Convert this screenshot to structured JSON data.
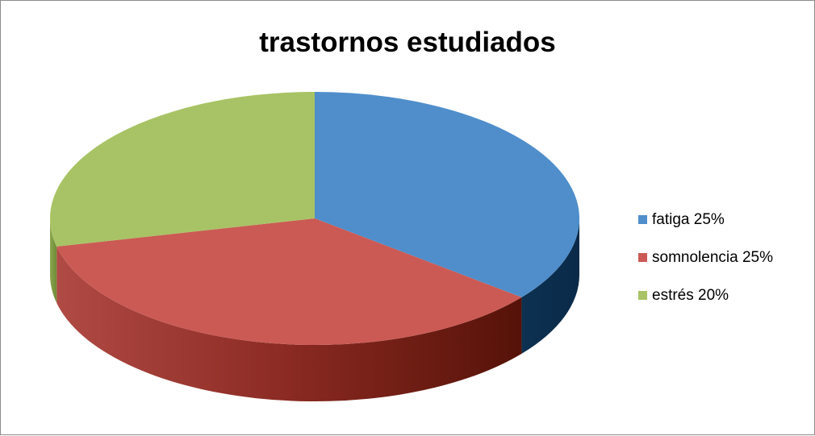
{
  "chart_data": {
    "type": "pie",
    "title": "trastornos estudiados",
    "three_d": true,
    "categories": [
      "fatiga 25%",
      "somnolencia 25%",
      "estrés 20%"
    ],
    "values": [
      25,
      25,
      20
    ],
    "colors": [
      "#4f8ecb",
      "#cb5a54",
      "#a8c365"
    ],
    "side_colors": [
      "#0f3558",
      "#6e1e14",
      "#6f8a35"
    ],
    "legend_position": "right"
  }
}
